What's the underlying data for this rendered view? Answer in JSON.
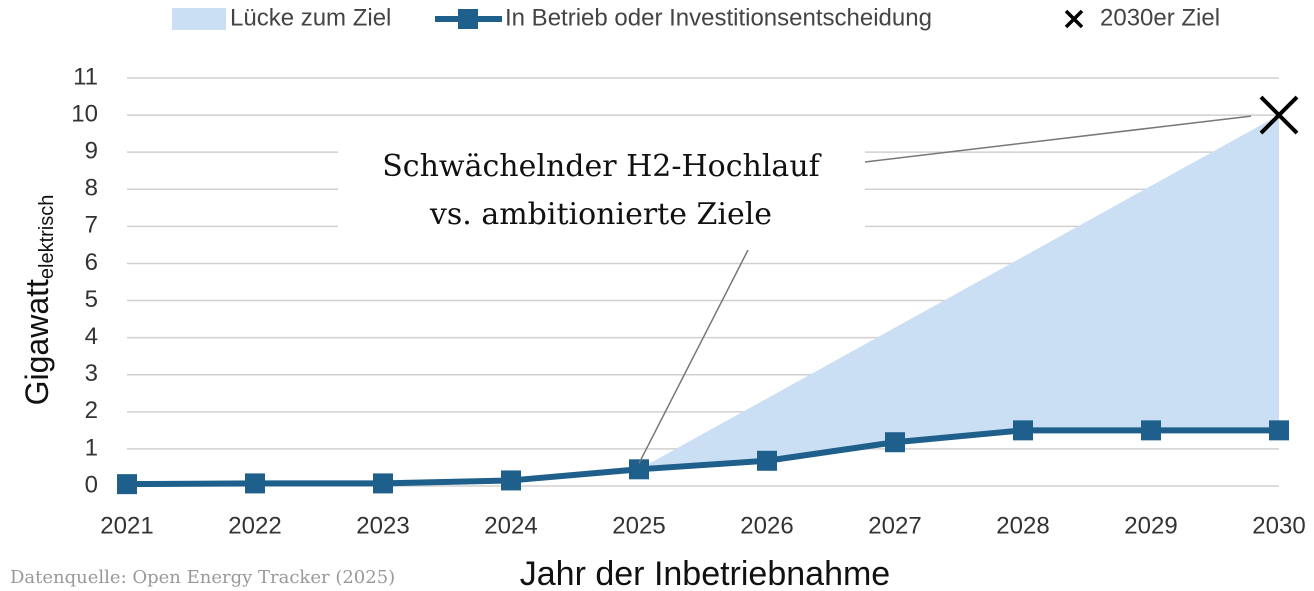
{
  "chart_data": {
    "type": "line",
    "xlabel": "Jahr der Inbetriebnahme",
    "ylabel": "Gigawatt",
    "ylabel_sub": "elektrisch",
    "annotation": [
      "Schwächelnder H2-Hochlauf",
      "vs. ambitionierte Ziele"
    ],
    "source": "Datenquelle: Open Energy Tracker (2025)",
    "categories": [
      "2021",
      "2022",
      "2023",
      "2024",
      "2025",
      "2026",
      "2027",
      "2028",
      "2029",
      "2030"
    ],
    "series": [
      {
        "name": "In Betrieb oder Investitionsentscheidung",
        "color": "#1f5f8b",
        "values": [
          0.05,
          0.07,
          0.07,
          0.15,
          0.45,
          0.68,
          1.18,
          1.5,
          1.5,
          1.5
        ]
      },
      {
        "name": "Lücke zum Ziel",
        "color": "#cadff4",
        "stacked_on": 0,
        "values": [
          null,
          null,
          null,
          null,
          0,
          1.68,
          3.09,
          4.68,
          6.59,
          8.5
        ]
      },
      {
        "name": "2030er Ziel",
        "color": "#000000",
        "values": [
          null,
          null,
          null,
          null,
          null,
          null,
          null,
          null,
          null,
          10
        ]
      }
    ],
    "ylim": [
      0,
      11
    ],
    "yticks": [
      0,
      1,
      2,
      3,
      4,
      5,
      6,
      7,
      8,
      9,
      10,
      11
    ],
    "grid": true
  }
}
